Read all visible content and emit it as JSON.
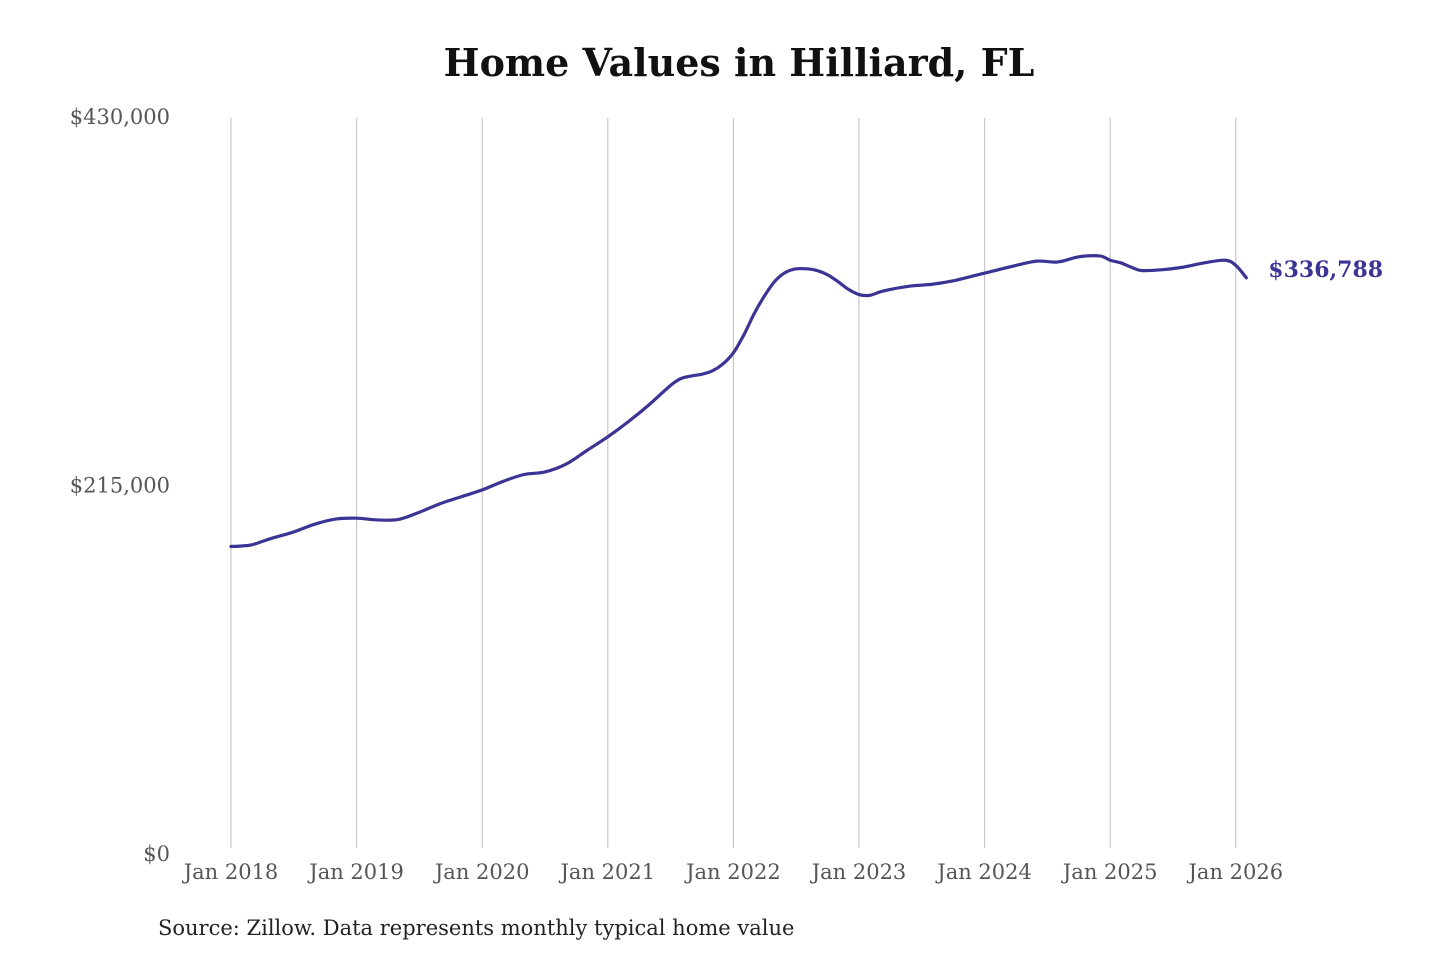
{
  "chart_data": {
    "type": "line",
    "title": "Home Values in Hilliard, FL",
    "xlabel": "",
    "ylabel": "",
    "ylim": [
      0,
      430000
    ],
    "y_ticks": [
      "$0",
      "$215,000",
      "$430,000"
    ],
    "y_tick_values": [
      0,
      215000,
      430000
    ],
    "x_ticks": [
      "Jan 2018",
      "Jan 2019",
      "Jan 2020",
      "Jan 2021",
      "Jan 2022",
      "Jan 2023",
      "Jan 2024",
      "Jan 2025",
      "Jan 2026"
    ],
    "grid": "vertical",
    "line_color": "#3b3494",
    "end_label": "$336,788",
    "series": [
      {
        "x": [
          "Jan 2018",
          "Feb 2018",
          "Mar 2018",
          "Apr 2018",
          "May 2018",
          "Jul 2018",
          "Sep 2018",
          "Nov 2018",
          "Jan 2019",
          "Mar 2019",
          "May 2019",
          "Jul 2019",
          "Sep 2019",
          "Nov 2019",
          "Jan 2020",
          "Mar 2020",
          "May 2020",
          "Jul 2020",
          "Sep 2020",
          "Nov 2020",
          "Jan 2021",
          "Mar 2021",
          "May 2021",
          "Jul 2021",
          "Aug 2021",
          "Sep 2021",
          "Oct 2021",
          "Nov 2021",
          "Dec 2021",
          "Jan 2022",
          "Feb 2022",
          "Mar 2022",
          "Apr 2022",
          "May 2022",
          "Jun 2022",
          "Jul 2022",
          "Aug 2022",
          "Sep 2022",
          "Oct 2022",
          "Nov 2022",
          "Dec 2022",
          "Jan 2023",
          "Feb 2023",
          "Mar 2023",
          "Apr 2023",
          "Jun 2023",
          "Aug 2023",
          "Oct 2023",
          "Dec 2023",
          "Feb 2024",
          "Apr 2024",
          "Jun 2024",
          "Aug 2024",
          "Oct 2024",
          "Dec 2024",
          "Jan 2025",
          "Feb 2025",
          "Mar 2025",
          "Apr 2025",
          "Jun 2025",
          "Aug 2025",
          "Oct 2025",
          "Dec 2025",
          "Jan 2026",
          "Feb 2026"
        ],
        "values": [
          180000,
          180300,
          181000,
          183000,
          185000,
          188500,
          193000,
          196000,
          196500,
          195500,
          195800,
          200000,
          205000,
          209000,
          213000,
          218000,
          222000,
          223500,
          228000,
          236000,
          244000,
          253000,
          263000,
          274000,
          278000,
          279500,
          280500,
          282500,
          286500,
          293000,
          303500,
          316000,
          326500,
          335000,
          340000,
          342000,
          342000,
          341000,
          338500,
          334500,
          330000,
          327000,
          326500,
          328500,
          330000,
          332000,
          333000,
          335000,
          338000,
          341000,
          344000,
          346500,
          346000,
          349000,
          349500,
          347000,
          345500,
          343000,
          341000,
          341500,
          343000,
          345500,
          347000,
          344000,
          336788
        ]
      }
    ]
  },
  "footer": {
    "source_text": "Source: Zillow. Data represents monthly typical home value"
  }
}
